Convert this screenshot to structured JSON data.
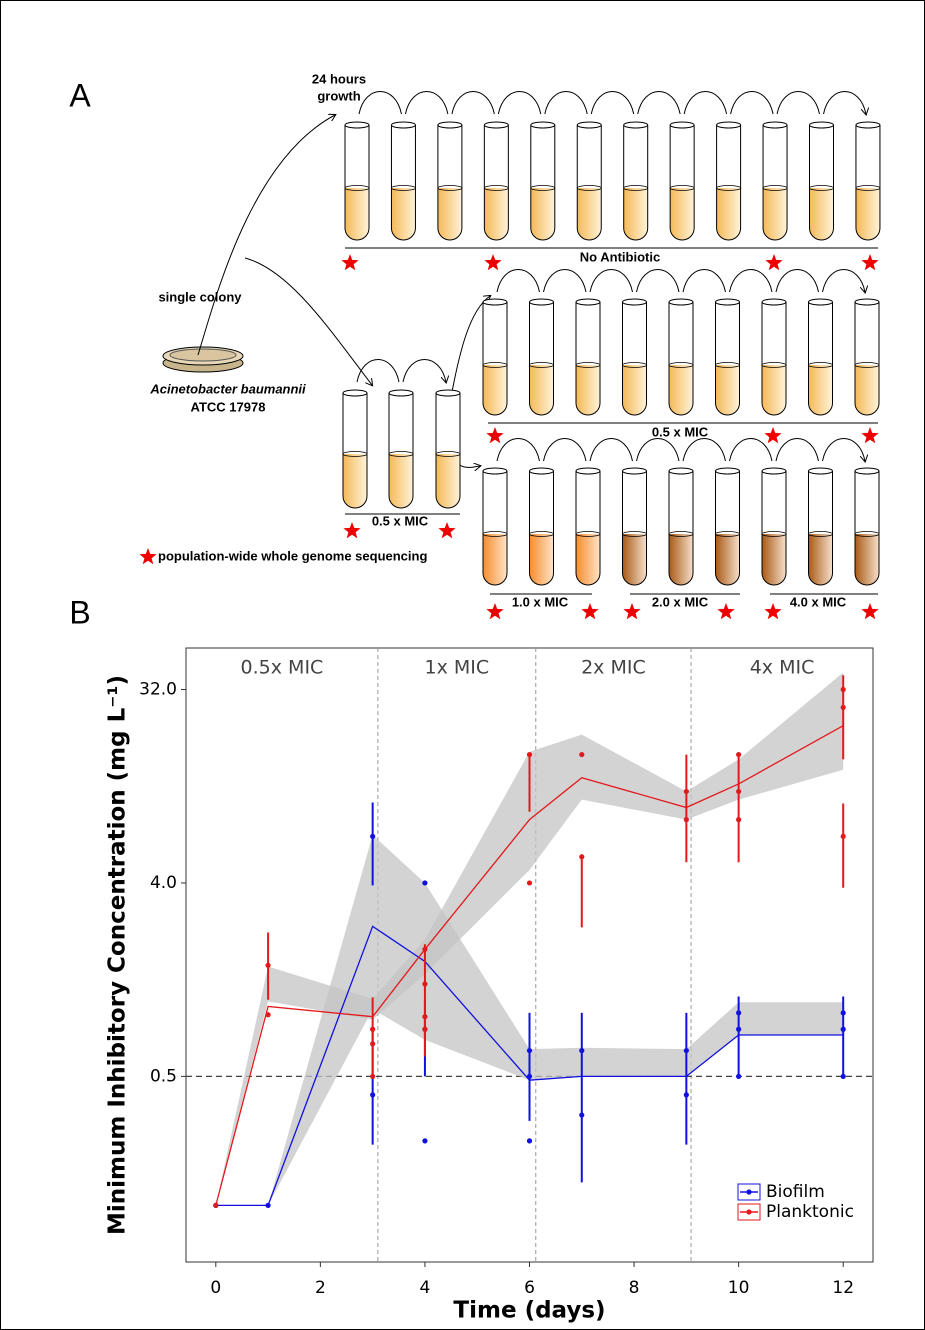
{
  "panel_a": {
    "label": "A",
    "growth": [
      "24 hours",
      "growth"
    ],
    "colony": "single colony",
    "species": "Acinetobacter baumannii",
    "strain": "ATCC 17978",
    "rows": [
      "No Antibiotic",
      "0.5 x MIC"
    ],
    "start": "0.5 x MIC",
    "steps": [
      "1.0 x MIC",
      "2.0 x MIC",
      "4.0 x MIC"
    ],
    "star_legend": "population-wide whole genome sequencing"
  },
  "chart_data": {
    "type": "line",
    "panel_label": "B",
    "x_label": "Time (days)",
    "y_label": "Minimum Inhibitory Concentration (mg L⁻¹)",
    "xlim": [
      -0.57,
      12.57
    ],
    "xticks": [
      0,
      2,
      4,
      6,
      8,
      10,
      12
    ],
    "ylim": [
      0.068,
      50
    ],
    "log_y": true,
    "yticks": [
      0.5,
      {
        "value": 4,
        "label": "4.0"
      },
      {
        "value": 32,
        "label": "32.0"
      }
    ],
    "vlines": [
      3.1,
      6.12,
      9.09
    ],
    "phase_labels": [
      "0.5x MIC",
      "1x MIC",
      "2x MIC",
      "4x MIC"
    ],
    "hline": 0.5,
    "band_color": "#c4c4c4",
    "legend": "lower right",
    "x": [
      0,
      1,
      3,
      4,
      6,
      7,
      9,
      10,
      12
    ],
    "series": [
      {
        "name": "Biofilm",
        "color": "#1010e0",
        "values": [
          0.125,
          0.125,
          2.51,
          1.72,
          0.48,
          0.5,
          0.5,
          0.78,
          0.78
        ],
        "band_lower": [
          0.125,
          0.125,
          1.03,
          0.74,
          0.48,
          0.5,
          0.5,
          0.78,
          0.78
        ],
        "band_upper": [
          0.125,
          0.125,
          6.7,
          4.0,
          0.67,
          0.68,
          0.67,
          1.11,
          1.11
        ],
        "points_x": [
          0,
          1,
          3,
          3,
          4,
          4,
          4,
          6,
          6,
          6,
          7,
          7,
          9,
          9,
          10,
          10,
          10,
          12,
          12,
          12
        ],
        "points_y": [
          0.125,
          0.125,
          6.6,
          0.41,
          4.0,
          0.83,
          0.25,
          0.66,
          0.5,
          0.25,
          0.66,
          0.33,
          0.66,
          0.41,
          0.99,
          0.83,
          0.5,
          0.99,
          0.83,
          0.5
        ],
        "err_x": [
          3,
          3,
          4,
          6,
          7,
          9,
          10,
          12
        ],
        "err_low": [
          3.9,
          0.24,
          0.5,
          0.31,
          0.16,
          0.24,
          0.5,
          0.5
        ],
        "err_high": [
          9.5,
          0.83,
          1.14,
          0.99,
          0.99,
          0.99,
          1.18,
          1.18
        ]
      },
      {
        "name": "Planktonic",
        "color": "#e3191c",
        "values": [
          0.125,
          1.06,
          0.95,
          1.96,
          7.9,
          12.4,
          9.0,
          11.6,
          21.7
        ],
        "band_lower": [
          0.125,
          1.12,
          0.92,
          1.5,
          4.6,
          9.8,
          7.9,
          9.8,
          13.5
        ],
        "band_upper": [
          0.125,
          1.63,
          1.15,
          2.18,
          16.4,
          19.7,
          10.7,
          15.1,
          38.4
        ],
        "points_x": [
          0,
          1,
          1,
          3,
          3,
          3,
          4,
          4,
          4,
          4,
          6,
          6,
          7,
          7,
          9,
          9,
          10,
          10,
          10,
          12,
          12,
          12
        ],
        "points_y": [
          0.125,
          1.65,
          0.97,
          0.83,
          0.5,
          0.71,
          1.96,
          1.35,
          0.95,
          0.83,
          15.9,
          4.0,
          15.9,
          5.3,
          10.7,
          7.9,
          15.9,
          10.7,
          7.9,
          32,
          26.4,
          6.6
        ],
        "err_x": [
          1,
          3,
          4,
          6,
          7,
          9,
          10,
          12,
          12
        ],
        "err_low": [
          1.14,
          0.5,
          0.62,
          8.6,
          2.48,
          5.0,
          5.0,
          15.1,
          3.8
        ],
        "err_high": [
          2.35,
          1.17,
          2.07,
          15.9,
          5.3,
          15.9,
          15.9,
          37.3,
          9.4
        ]
      }
    ]
  }
}
